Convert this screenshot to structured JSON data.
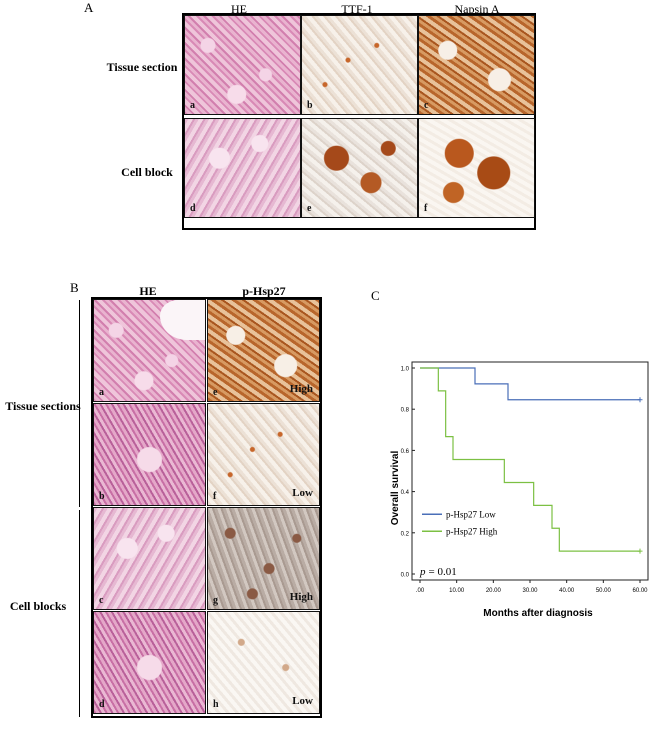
{
  "panel_a": {
    "letter": "A",
    "columns": [
      "HE",
      "TTF-1",
      "Napsin A"
    ],
    "rows": [
      "Tissue section",
      "Cell block"
    ],
    "tiles": [
      {
        "sub": "a",
        "style": "he-lung"
      },
      {
        "sub": "b",
        "style": "ihc-sparse"
      },
      {
        "sub": "c",
        "style": "ihc-brown"
      },
      {
        "sub": "d",
        "style": "he-cells"
      },
      {
        "sub": "e",
        "style": "ihc-clusters"
      },
      {
        "sub": "f",
        "style": "ihc-big"
      }
    ]
  },
  "panel_b": {
    "letter": "B",
    "columns": [
      "HE",
      "p-Hsp27"
    ],
    "rows": [
      "Tissue sections",
      "Cell blocks"
    ],
    "tiles": [
      {
        "sub": "a",
        "level": "",
        "style": "he-lung"
      },
      {
        "sub": "e",
        "level": "High",
        "style": "ihc-brown"
      },
      {
        "sub": "b",
        "level": "",
        "style": "he-dense"
      },
      {
        "sub": "f",
        "level": "Low",
        "style": "ihc-sparse"
      },
      {
        "sub": "c",
        "level": "",
        "style": "he-cells"
      },
      {
        "sub": "g",
        "level": "High",
        "style": "ihc-grey"
      },
      {
        "sub": "d",
        "level": "",
        "style": "he-dense"
      },
      {
        "sub": "h",
        "level": "Low",
        "style": "ihc-verysparse"
      }
    ]
  },
  "panel_c": {
    "letter": "C",
    "p_value_label": "p",
    "p_value_text": "= 0.01"
  },
  "chart_data": {
    "type": "line",
    "subtype": "kaplan-meier step",
    "title": "",
    "xlabel": "Months after diagnosis",
    "ylabel": "Overall survival",
    "xlim": [
      0,
      60
    ],
    "ylim": [
      0,
      1.0
    ],
    "x_ticks": [
      ".00",
      "10.00",
      "20.00",
      "30.00",
      "40.00",
      "50.00",
      "60.00"
    ],
    "x_tick_values": [
      0,
      10,
      20,
      30,
      40,
      50,
      60
    ],
    "y_ticks": [
      "0.0",
      "0.2",
      "0.4",
      "0.6",
      "0.8",
      "1.0"
    ],
    "y_tick_values": [
      0,
      0.2,
      0.4,
      0.6,
      0.8,
      1.0
    ],
    "legend_position": "bottom-left",
    "series": [
      {
        "name": "p-Hsp27  Low",
        "color": "#4a6fb8",
        "steps": [
          [
            0,
            1.0
          ],
          [
            15,
            0.923
          ],
          [
            24,
            0.846
          ],
          [
            60,
            0.846
          ]
        ],
        "censor": [
          [
            60,
            0.846
          ]
        ]
      },
      {
        "name": "p-Hsp27  High",
        "color": "#7cc043",
        "steps": [
          [
            0,
            1.0
          ],
          [
            5,
            0.889
          ],
          [
            7,
            0.667
          ],
          [
            9,
            0.556
          ],
          [
            23,
            0.444
          ],
          [
            31,
            0.333
          ],
          [
            36,
            0.222
          ],
          [
            38,
            0.111
          ],
          [
            60,
            0.111
          ]
        ],
        "censor": [
          [
            60,
            0.111
          ]
        ]
      }
    ]
  }
}
